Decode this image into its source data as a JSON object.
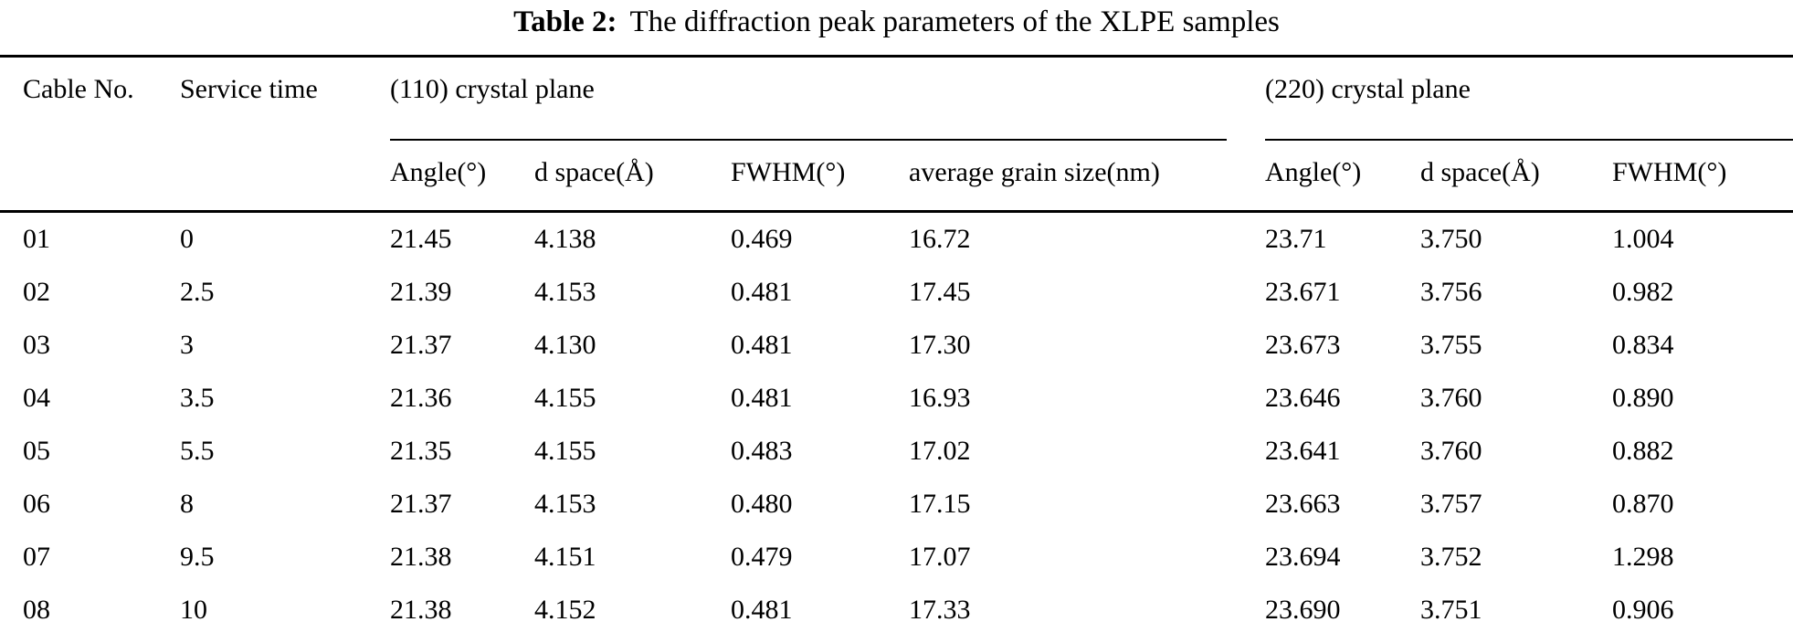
{
  "title": {
    "label": "Table 2:",
    "text": "The diffraction peak parameters of the XLPE samples"
  },
  "table": {
    "header": {
      "cable_no": "Cable No.",
      "service_time": "Service time",
      "group_110": "(110) crystal plane",
      "group_220": "(220) crystal plane",
      "sub_110": [
        "Angle(°)",
        "d space(Å)",
        "FWHM(°)",
        "average grain size(nm)"
      ],
      "sub_220": [
        "Angle(°)",
        "d space(Å)",
        "FWHM(°)"
      ]
    },
    "rows": [
      [
        "01",
        "0",
        "21.45",
        "4.138",
        "0.469",
        "16.72",
        "23.71",
        "3.750",
        "1.004"
      ],
      [
        "02",
        "2.5",
        "21.39",
        "4.153",
        "0.481",
        "17.45",
        "23.671",
        "3.756",
        "0.982"
      ],
      [
        "03",
        "3",
        "21.37",
        "4.130",
        "0.481",
        "17.30",
        "23.673",
        "3.755",
        "0.834"
      ],
      [
        "04",
        "3.5",
        "21.36",
        "4.155",
        "0.481",
        "16.93",
        "23.646",
        "3.760",
        "0.890"
      ],
      [
        "05",
        "5.5",
        "21.35",
        "4.155",
        "0.483",
        "17.02",
        "23.641",
        "3.760",
        "0.882"
      ],
      [
        "06",
        "8",
        "21.37",
        "4.153",
        "0.480",
        "17.15",
        "23.663",
        "3.757",
        "0.870"
      ],
      [
        "07",
        "9.5",
        "21.38",
        "4.151",
        "0.479",
        "17.07",
        "23.694",
        "3.752",
        "1.298"
      ],
      [
        "08",
        "10",
        "21.38",
        "4.152",
        "0.481",
        "17.33",
        "23.690",
        "3.751",
        "0.906"
      ]
    ]
  }
}
